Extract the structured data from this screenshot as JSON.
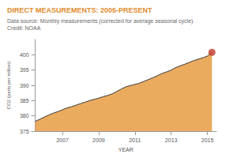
{
  "chart_data": {
    "type": "line",
    "title": "DIRECT MEASUREMENTS: 2005-PRESENT",
    "subtitle": "Data source: Monthly measurements (corrected for average seasonal cycle). Credit: NOAA",
    "x_label": "YEAR",
    "y_label": "CO2 (parts per million)",
    "xlim": [
      2005.5,
      2015.5
    ],
    "xticks": [
      2007,
      2009,
      2011,
      2013,
      2015
    ],
    "ylim": [
      375,
      405
    ],
    "yticks": [
      375,
      380,
      385,
      390,
      395,
      400
    ],
    "grid": false,
    "series": [
      {
        "type": "area",
        "color": "#e8a24e",
        "x": [
          2005.5,
          2005.75,
          2006.0,
          2006.25,
          2006.5,
          2006.75,
          2007.0,
          2007.25,
          2007.5,
          2007.75,
          2008.0,
          2008.25,
          2008.5,
          2008.75,
          2009.0,
          2009.25,
          2009.5,
          2009.75,
          2010.0,
          2010.25,
          2010.5,
          2010.75,
          2011.0,
          2011.25,
          2011.5,
          2011.75,
          2012.0,
          2012.25,
          2012.5,
          2012.75,
          2013.0,
          2013.25,
          2013.5,
          2013.75,
          2014.0,
          2014.25,
          2014.5,
          2014.75,
          2015.0,
          2015.25
        ],
        "values": [
          378.2,
          378.9,
          379.6,
          380.3,
          380.9,
          381.4,
          382.0,
          382.6,
          383.0,
          383.5,
          384.0,
          384.5,
          385.0,
          385.4,
          385.8,
          386.3,
          386.7,
          387.2,
          388.0,
          388.8,
          389.5,
          389.9,
          390.3,
          390.7,
          391.3,
          391.9,
          392.5,
          393.2,
          393.9,
          394.4,
          395.0,
          395.8,
          396.4,
          396.9,
          397.5,
          398.1,
          398.6,
          399.0,
          399.6,
          400.8
        ]
      },
      {
        "type": "scatter",
        "color": "#c0392b",
        "marker": "circle",
        "x": [
          2015.25
        ],
        "values": [
          400.8
        ]
      }
    ]
  }
}
